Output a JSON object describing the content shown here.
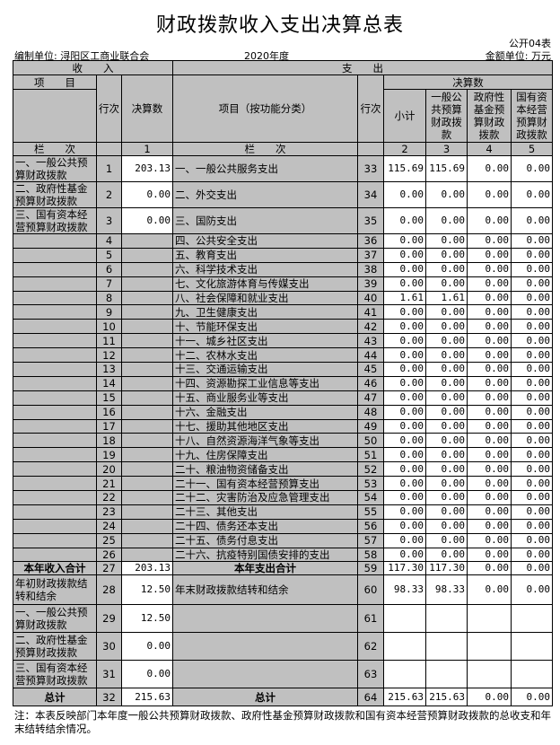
{
  "title": "财政拨款收入支出决算总表",
  "form_no": "公开04表",
  "unit": "编制单位: 浔阳区工商业联合会",
  "year": "2020年度",
  "money_unit": "金额单位: 万元",
  "header": {
    "income": "收　　入",
    "expense": "支　　出",
    "item": "项　　目",
    "row_no": "行次",
    "amount": "决算数",
    "exp_item": "项目（按功能分类）",
    "final": "决算数",
    "subtotal": "小计",
    "general": "一般公共预算财政拨款",
    "fund": "政府性基金预算财政拨款",
    "state": "国有资本经营预算财政拨款",
    "col_label": "栏　　次",
    "col_nums": [
      "1",
      "2",
      "3",
      "4",
      "5"
    ]
  },
  "rows": [
    {
      "in_item": "一、一般公共预算财政拨款",
      "in_no": "1",
      "in_amt": "203.13",
      "ex_item": "一、一般公共服务支出",
      "ex_no": "33",
      "v": [
        "115.69",
        "115.69",
        "0.00",
        "0.00"
      ]
    },
    {
      "in_item": "二、政府性基金预算财政拨款",
      "in_no": "2",
      "in_amt": "0.00",
      "ex_item": "二、外交支出",
      "ex_no": "34",
      "v": [
        "0.00",
        "0.00",
        "0.00",
        "0.00"
      ]
    },
    {
      "in_item": "三、国有资本经营预算财政拨款",
      "in_no": "3",
      "in_amt": "0.00",
      "ex_item": "三、国防支出",
      "ex_no": "35",
      "v": [
        "0.00",
        "0.00",
        "0.00",
        "0.00"
      ]
    },
    {
      "in_item": "",
      "in_no": "4",
      "in_amt": "",
      "ex_item": "四、公共安全支出",
      "ex_no": "36",
      "v": [
        "0.00",
        "0.00",
        "0.00",
        "0.00"
      ]
    },
    {
      "in_item": "",
      "in_no": "5",
      "in_amt": "",
      "ex_item": "五、教育支出",
      "ex_no": "37",
      "v": [
        "0.00",
        "0.00",
        "0.00",
        "0.00"
      ]
    },
    {
      "in_item": "",
      "in_no": "6",
      "in_amt": "",
      "ex_item": "六、科学技术支出",
      "ex_no": "38",
      "v": [
        "0.00",
        "0.00",
        "0.00",
        "0.00"
      ]
    },
    {
      "in_item": "",
      "in_no": "7",
      "in_amt": "",
      "ex_item": "七、文化旅游体育与传媒支出",
      "ex_no": "39",
      "v": [
        "0.00",
        "0.00",
        "0.00",
        "0.00"
      ]
    },
    {
      "in_item": "",
      "in_no": "8",
      "in_amt": "",
      "ex_item": "八、社会保障和就业支出",
      "ex_no": "40",
      "v": [
        "1.61",
        "1.61",
        "0.00",
        "0.00"
      ]
    },
    {
      "in_item": "",
      "in_no": "9",
      "in_amt": "",
      "ex_item": "九、卫生健康支出",
      "ex_no": "41",
      "v": [
        "0.00",
        "0.00",
        "0.00",
        "0.00"
      ]
    },
    {
      "in_item": "",
      "in_no": "10",
      "in_amt": "",
      "ex_item": "十、节能环保支出",
      "ex_no": "42",
      "v": [
        "0.00",
        "0.00",
        "0.00",
        "0.00"
      ]
    },
    {
      "in_item": "",
      "in_no": "11",
      "in_amt": "",
      "ex_item": "十一、城乡社区支出",
      "ex_no": "43",
      "v": [
        "0.00",
        "0.00",
        "0.00",
        "0.00"
      ]
    },
    {
      "in_item": "",
      "in_no": "12",
      "in_amt": "",
      "ex_item": "十二、农林水支出",
      "ex_no": "44",
      "v": [
        "0.00",
        "0.00",
        "0.00",
        "0.00"
      ]
    },
    {
      "in_item": "",
      "in_no": "13",
      "in_amt": "",
      "ex_item": "十三、交通运输支出",
      "ex_no": "45",
      "v": [
        "0.00",
        "0.00",
        "0.00",
        "0.00"
      ]
    },
    {
      "in_item": "",
      "in_no": "14",
      "in_amt": "",
      "ex_item": "十四、资源勘探工业信息等支出",
      "ex_no": "46",
      "v": [
        "0.00",
        "0.00",
        "0.00",
        "0.00"
      ]
    },
    {
      "in_item": "",
      "in_no": "15",
      "in_amt": "",
      "ex_item": "十五、商业服务业等支出",
      "ex_no": "47",
      "v": [
        "0.00",
        "0.00",
        "0.00",
        "0.00"
      ]
    },
    {
      "in_item": "",
      "in_no": "16",
      "in_amt": "",
      "ex_item": "十六、金融支出",
      "ex_no": "48",
      "v": [
        "0.00",
        "0.00",
        "0.00",
        "0.00"
      ]
    },
    {
      "in_item": "",
      "in_no": "17",
      "in_amt": "",
      "ex_item": "十七、援助其他地区支出",
      "ex_no": "49",
      "v": [
        "0.00",
        "0.00",
        "0.00",
        "0.00"
      ]
    },
    {
      "in_item": "",
      "in_no": "18",
      "in_amt": "",
      "ex_item": "十八、自然资源海洋气象等支出",
      "ex_no": "50",
      "v": [
        "0.00",
        "0.00",
        "0.00",
        "0.00"
      ]
    },
    {
      "in_item": "",
      "in_no": "19",
      "in_amt": "",
      "ex_item": "十九、住房保障支出",
      "ex_no": "51",
      "v": [
        "0.00",
        "0.00",
        "0.00",
        "0.00"
      ]
    },
    {
      "in_item": "",
      "in_no": "20",
      "in_amt": "",
      "ex_item": "二十、粮油物资储备支出",
      "ex_no": "52",
      "v": [
        "0.00",
        "0.00",
        "0.00",
        "0.00"
      ]
    },
    {
      "in_item": "",
      "in_no": "21",
      "in_amt": "",
      "ex_item": "二十一、国有资本经营预算支出",
      "ex_no": "53",
      "v": [
        "0.00",
        "0.00",
        "0.00",
        "0.00"
      ]
    },
    {
      "in_item": "",
      "in_no": "22",
      "in_amt": "",
      "ex_item": "二十二、灾害防治及应急管理支出",
      "ex_no": "54",
      "v": [
        "0.00",
        "0.00",
        "0.00",
        "0.00"
      ]
    },
    {
      "in_item": "",
      "in_no": "23",
      "in_amt": "",
      "ex_item": "二十三、其他支出",
      "ex_no": "55",
      "v": [
        "0.00",
        "0.00",
        "0.00",
        "0.00"
      ]
    },
    {
      "in_item": "",
      "in_no": "24",
      "in_amt": "",
      "ex_item": "二十四、债务还本支出",
      "ex_no": "56",
      "v": [
        "0.00",
        "0.00",
        "0.00",
        "0.00"
      ]
    },
    {
      "in_item": "",
      "in_no": "25",
      "in_amt": "",
      "ex_item": "二十五、债务付息支出",
      "ex_no": "57",
      "v": [
        "0.00",
        "0.00",
        "0.00",
        "0.00"
      ]
    },
    {
      "in_item": "",
      "in_no": "26",
      "in_amt": "",
      "ex_item": "二十六、抗疫特别国债安排的支出",
      "ex_no": "58",
      "v": [
        "0.00",
        "0.00",
        "0.00",
        "0.00"
      ]
    },
    {
      "in_item": "本年收入合计",
      "in_no": "27",
      "in_amt": "203.13",
      "ex_item": "本年支出合计",
      "ex_no": "59",
      "v": [
        "117.30",
        "117.30",
        "0.00",
        "0.00"
      ],
      "bold": true
    },
    {
      "in_item": "年初财政拨款结转和结余",
      "in_no": "28",
      "in_amt": "12.50",
      "ex_item": "年末财政拨款结转和结余",
      "ex_no": "60",
      "v": [
        "98.33",
        "98.33",
        "0.00",
        "0.00"
      ],
      "left": true
    },
    {
      "in_item": "一、一般公共预算财政拨款",
      "in_no": "29",
      "in_amt": "12.50",
      "ex_item": "",
      "ex_no": "61",
      "v": [
        "",
        "",
        "",
        ""
      ]
    },
    {
      "in_item": "二、政府性基金预算财政拨款",
      "in_no": "30",
      "in_amt": "0.00",
      "ex_item": "",
      "ex_no": "62",
      "v": [
        "",
        "",
        "",
        ""
      ]
    },
    {
      "in_item": "三、国有资本经营预算财政拨款",
      "in_no": "31",
      "in_amt": "0.00",
      "ex_item": "",
      "ex_no": "63",
      "v": [
        "",
        "",
        "",
        ""
      ]
    },
    {
      "in_item": "总计",
      "in_no": "32",
      "in_amt": "215.63",
      "ex_item": "总计",
      "ex_no": "64",
      "v": [
        "215.63",
        "215.63",
        "0.00",
        "0.00"
      ],
      "bold": true
    }
  ],
  "note": "注：本表反映部门本年度一般公共预算财政拨款、政府性基金预算财政拨款和国有资本经营预算财政拨款的总收支和年末结转结余情况。"
}
